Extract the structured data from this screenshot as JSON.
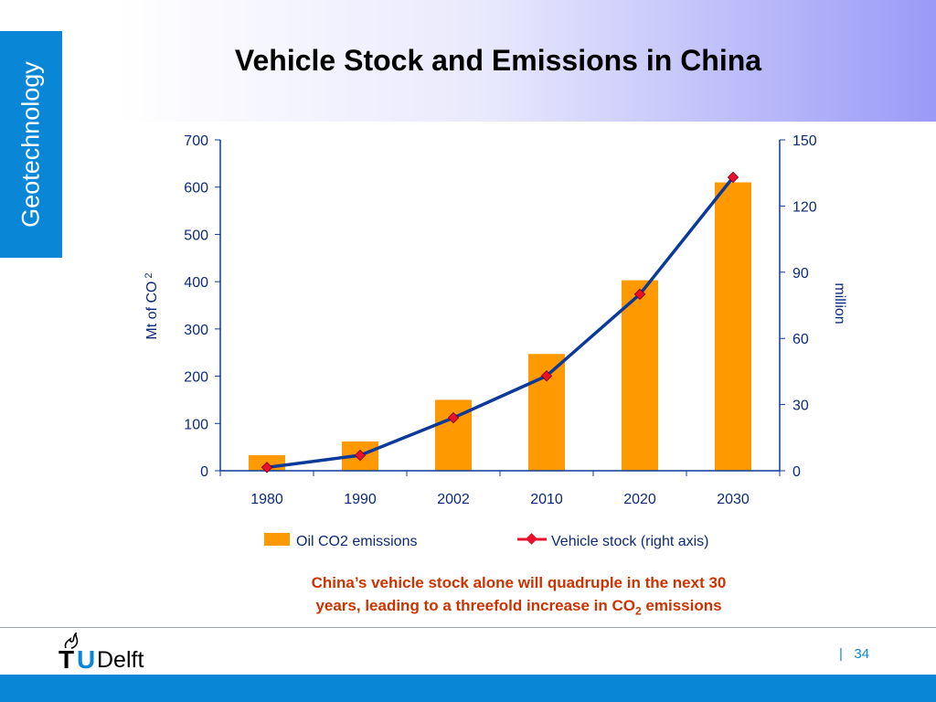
{
  "side_tab": {
    "label": "Geotechnology"
  },
  "slide": {
    "title": "Vehicle Stock and Emissions in China",
    "caption_line1": "China’s vehicle stock alone will quadruple in the next 30",
    "caption_line2_a": "years,  leading to a threefold increase in CO",
    "caption_line2_sub": "2",
    "caption_line2_b": " emissions",
    "logo_t": "T",
    "logo_u": "U",
    "logo_delft": "Delft",
    "page_separator": "|",
    "page_number": "34"
  },
  "colors": {
    "bar": "#ff9900",
    "line": "#0b3a9a",
    "marker": "#e8102a",
    "axis_text": "#0b2a78",
    "brand_blue": "#0a86d6",
    "caption": "#cc3300"
  },
  "chart_data": {
    "type": "bar",
    "categories": [
      "1980",
      "1990",
      "2002",
      "2010",
      "2020",
      "2030"
    ],
    "series": [
      {
        "name": "Oil CO2 emissions",
        "type": "bar",
        "axis": "left",
        "values": [
          33,
          62,
          150,
          247,
          403,
          610
        ]
      },
      {
        "name": "Vehicle stock (right axis)",
        "type": "line",
        "axis": "right",
        "values": [
          1.5,
          7,
          24,
          43,
          80,
          133
        ]
      }
    ],
    "ylabel": "Mt of CO",
    "ylabel_sub": "2",
    "y2label": "million",
    "ylim": [
      0,
      700
    ],
    "y2lim": [
      0,
      150
    ],
    "yticks": [
      "0",
      "100",
      "200",
      "300",
      "400",
      "500",
      "600",
      "700"
    ],
    "y2ticks": [
      "0",
      "30",
      "60",
      "90",
      "120",
      "150"
    ],
    "legend_position": "bottom",
    "grid": false
  }
}
